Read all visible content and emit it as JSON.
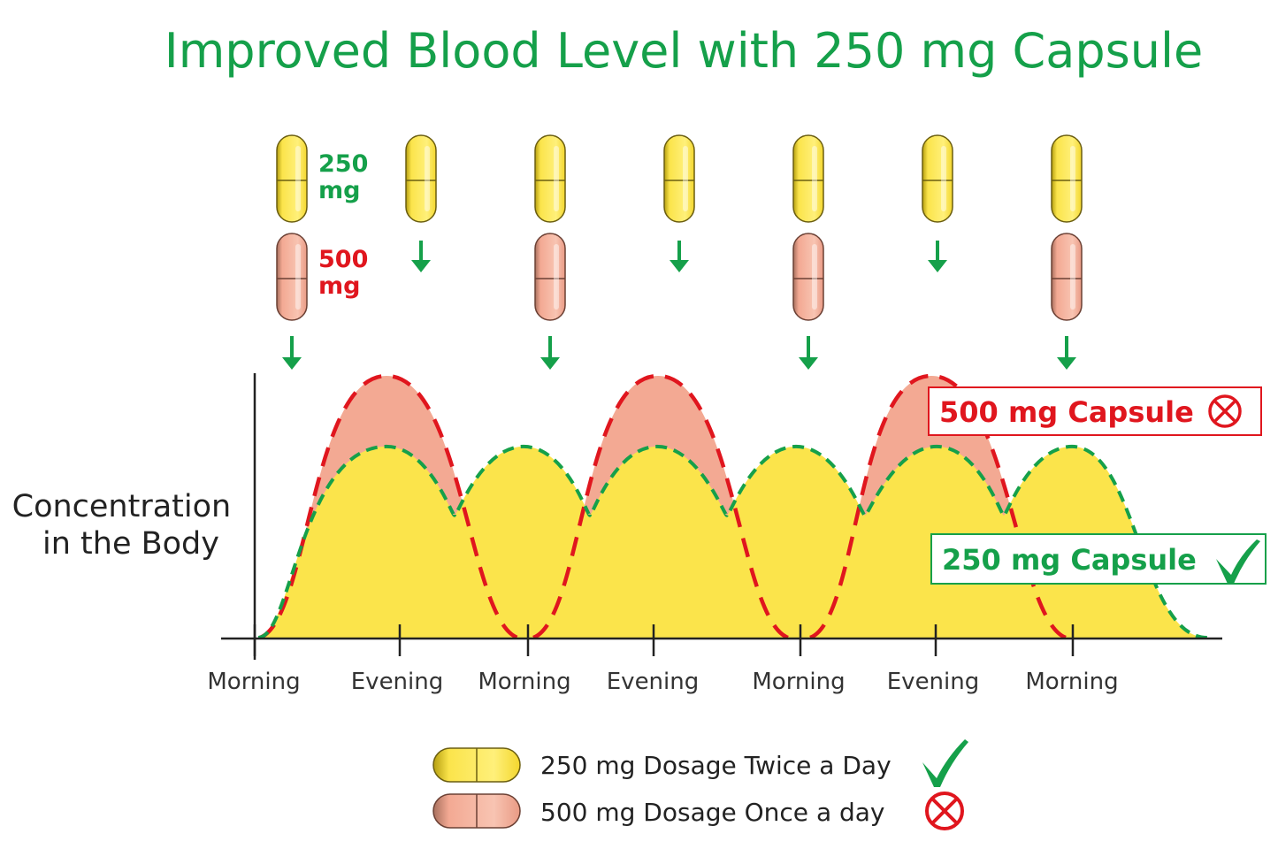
{
  "title": "Improved Blood Level with 250 mg Capsule",
  "pill_labels": {
    "p250_num": "250",
    "p250_unit": "mg",
    "p500_num": "500",
    "p500_unit": "mg"
  },
  "callouts": {
    "c500": "500 mg Capsule",
    "c250": "250 mg Capsule"
  },
  "legend": [
    {
      "label": "250 mg Dosage Twice a Day",
      "mark": "check-icon"
    },
    {
      "label": "500 mg Dosage Once a day",
      "mark": "cross-circle-icon"
    }
  ],
  "colors": {
    "green": "#15a04a",
    "red": "#e0161e",
    "yellow_fill": "#fbe44b",
    "salmon_fill": "#f3a993",
    "axis": "#222222"
  },
  "chart_data": {
    "type": "area",
    "title": "Improved Blood Level with 250 mg Capsule",
    "ylabel": "Concentration\nin the Body",
    "xlabel": "",
    "x_ticks": [
      "Morning",
      "Evening",
      "Morning",
      "Evening",
      "Morning",
      "Evening",
      "Morning"
    ],
    "series": [
      {
        "name": "250 mg Capsule",
        "dosing": "250 mg Dosage Twice a Day",
        "dose_times": [
          "Morning",
          "Evening",
          "Morning",
          "Evening",
          "Morning",
          "Evening",
          "Morning"
        ],
        "peak": 0.73,
        "trough": 0.47,
        "color": "#15a04a"
      },
      {
        "name": "500 mg Capsule",
        "dosing": "500 mg Dosage Once a day",
        "dose_times": [
          "Morning",
          "Morning",
          "Morning",
          "Morning"
        ],
        "peak": 1.0,
        "trough": 0.0,
        "color": "#e0161e"
      }
    ],
    "grid": false,
    "legend_position": "bottom"
  }
}
